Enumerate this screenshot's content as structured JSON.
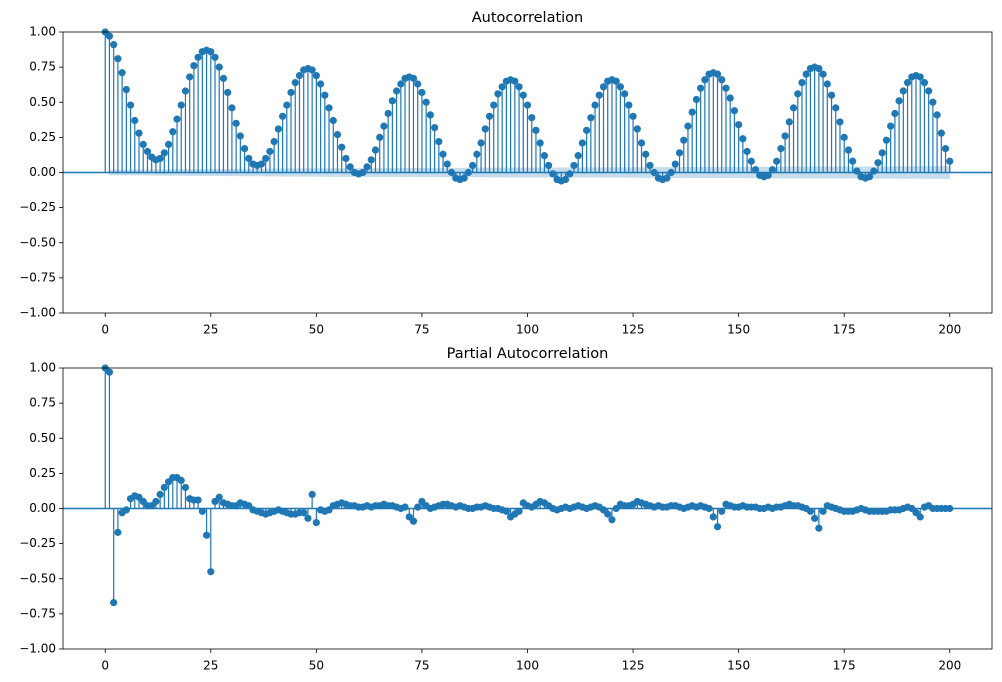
{
  "chart_data": [
    {
      "type": "stem",
      "title": "Autocorrelation",
      "color": "#1f77b4",
      "x": [
        0,
        1,
        2,
        3,
        4,
        5,
        6,
        7,
        8,
        9,
        10,
        11,
        12,
        13,
        14,
        15,
        16,
        17,
        18,
        19,
        20,
        21,
        22,
        23,
        24,
        25,
        26,
        27,
        28,
        29,
        30,
        31,
        32,
        33,
        34,
        35,
        36,
        37,
        38,
        39,
        40,
        41,
        42,
        43,
        44,
        45,
        46,
        47,
        48,
        49,
        50,
        51,
        52,
        53,
        54,
        55,
        56,
        57,
        58,
        59,
        60,
        61,
        62,
        63,
        64,
        65,
        66,
        67,
        68,
        69,
        70,
        71,
        72,
        73,
        74,
        75,
        76,
        77,
        78,
        79,
        80,
        81,
        82,
        83,
        84,
        85,
        86,
        87,
        88,
        89,
        90,
        91,
        92,
        93,
        94,
        95,
        96,
        97,
        98,
        99,
        100,
        101,
        102,
        103,
        104,
        105,
        106,
        107,
        108,
        109,
        110,
        111,
        112,
        113,
        114,
        115,
        116,
        117,
        118,
        119,
        120,
        121,
        122,
        123,
        124,
        125,
        126,
        127,
        128,
        129,
        130,
        131,
        132,
        133,
        134,
        135,
        136,
        137,
        138,
        139,
        140,
        141,
        142,
        143,
        144,
        145,
        146,
        147,
        148,
        149,
        150,
        151,
        152,
        153,
        154,
        155,
        156,
        157,
        158,
        159,
        160,
        161,
        162,
        163,
        164,
        165,
        166,
        167,
        168,
        169,
        170,
        171,
        172,
        173,
        174,
        175,
        176,
        177,
        178,
        179,
        180,
        181,
        182,
        183,
        184,
        185,
        186,
        187,
        188,
        189,
        190,
        191,
        192,
        193,
        194,
        195,
        196,
        197,
        198,
        199,
        200
      ],
      "values": [
        1.0,
        0.97,
        0.91,
        0.81,
        0.71,
        0.59,
        0.48,
        0.37,
        0.28,
        0.2,
        0.15,
        0.11,
        0.09,
        0.1,
        0.14,
        0.2,
        0.29,
        0.38,
        0.48,
        0.58,
        0.68,
        0.76,
        0.82,
        0.86,
        0.87,
        0.86,
        0.82,
        0.75,
        0.67,
        0.57,
        0.46,
        0.35,
        0.26,
        0.17,
        0.1,
        0.06,
        0.05,
        0.06,
        0.1,
        0.15,
        0.22,
        0.31,
        0.4,
        0.48,
        0.57,
        0.64,
        0.69,
        0.73,
        0.74,
        0.73,
        0.69,
        0.63,
        0.55,
        0.46,
        0.37,
        0.27,
        0.18,
        0.1,
        0.04,
        0.0,
        -0.01,
        0.0,
        0.04,
        0.09,
        0.16,
        0.25,
        0.33,
        0.42,
        0.51,
        0.58,
        0.63,
        0.67,
        0.68,
        0.67,
        0.63,
        0.57,
        0.5,
        0.41,
        0.32,
        0.22,
        0.13,
        0.06,
        0.0,
        -0.04,
        -0.05,
        -0.04,
        0.0,
        0.05,
        0.13,
        0.21,
        0.31,
        0.4,
        0.48,
        0.56,
        0.61,
        0.65,
        0.66,
        0.65,
        0.61,
        0.55,
        0.48,
        0.39,
        0.3,
        0.21,
        0.12,
        0.05,
        -0.01,
        -0.05,
        -0.06,
        -0.05,
        -0.01,
        0.05,
        0.12,
        0.21,
        0.3,
        0.39,
        0.48,
        0.55,
        0.61,
        0.65,
        0.66,
        0.65,
        0.61,
        0.56,
        0.48,
        0.4,
        0.31,
        0.21,
        0.13,
        0.05,
        0.0,
        -0.04,
        -0.05,
        -0.04,
        0.0,
        0.06,
        0.14,
        0.23,
        0.33,
        0.43,
        0.52,
        0.6,
        0.66,
        0.7,
        0.71,
        0.7,
        0.66,
        0.6,
        0.53,
        0.44,
        0.34,
        0.24,
        0.15,
        0.08,
        0.02,
        -0.02,
        -0.03,
        -0.02,
        0.02,
        0.08,
        0.17,
        0.26,
        0.36,
        0.46,
        0.56,
        0.64,
        0.7,
        0.74,
        0.75,
        0.74,
        0.7,
        0.63,
        0.55,
        0.46,
        0.36,
        0.25,
        0.16,
        0.08,
        0.01,
        -0.03,
        -0.04,
        -0.03,
        0.01,
        0.07,
        0.14,
        0.23,
        0.33,
        0.42,
        0.51,
        0.58,
        0.64,
        0.68,
        0.69,
        0.68,
        0.64,
        0.58,
        0.5,
        0.41,
        0.28,
        0.17,
        0.08
      ],
      "confint": {
        "x": [
          1,
          25,
          50,
          100,
          150,
          200
        ],
        "values": [
          0.02,
          0.025,
          0.03,
          0.035,
          0.04,
          0.045
        ]
      },
      "xlim": [
        -10,
        210
      ],
      "ylim": [
        -1,
        1
      ],
      "xticks": [
        0,
        25,
        50,
        75,
        100,
        125,
        150,
        175,
        200
      ],
      "yticks": [
        {
          "value": -1,
          "label": "−1.00"
        },
        {
          "value": -0.75,
          "label": "−0.75"
        },
        {
          "value": -0.5,
          "label": "−0.50"
        },
        {
          "value": -0.25,
          "label": "−0.25"
        },
        {
          "value": 0,
          "label": "0.00"
        },
        {
          "value": 0.25,
          "label": "0.25"
        },
        {
          "value": 0.5,
          "label": "0.50"
        },
        {
          "value": 0.75,
          "label": "0.75"
        },
        {
          "value": 1,
          "label": "1.00"
        }
      ]
    },
    {
      "type": "stem",
      "title": "Partial Autocorrelation",
      "color": "#1f77b4",
      "x": [
        0,
        1,
        2,
        3,
        4,
        5,
        6,
        7,
        8,
        9,
        10,
        11,
        12,
        13,
        14,
        15,
        16,
        17,
        18,
        19,
        20,
        21,
        22,
        23,
        24,
        25,
        26,
        27,
        28,
        29,
        30,
        31,
        32,
        33,
        34,
        35,
        36,
        37,
        38,
        39,
        40,
        41,
        42,
        43,
        44,
        45,
        46,
        47,
        48,
        49,
        50,
        51,
        52,
        53,
        54,
        55,
        56,
        57,
        58,
        59,
        60,
        61,
        62,
        63,
        64,
        65,
        66,
        67,
        68,
        69,
        70,
        71,
        72,
        73,
        74,
        75,
        76,
        77,
        78,
        79,
        80,
        81,
        82,
        83,
        84,
        85,
        86,
        87,
        88,
        89,
        90,
        91,
        92,
        93,
        94,
        95,
        96,
        97,
        98,
        99,
        100,
        101,
        102,
        103,
        104,
        105,
        106,
        107,
        108,
        109,
        110,
        111,
        112,
        113,
        114,
        115,
        116,
        117,
        118,
        119,
        120,
        121,
        122,
        123,
        124,
        125,
        126,
        127,
        128,
        129,
        130,
        131,
        132,
        133,
        134,
        135,
        136,
        137,
        138,
        139,
        140,
        141,
        142,
        143,
        144,
        145,
        146,
        147,
        148,
        149,
        150,
        151,
        152,
        153,
        154,
        155,
        156,
        157,
        158,
        159,
        160,
        161,
        162,
        163,
        164,
        165,
        166,
        167,
        168,
        169,
        170,
        171,
        172,
        173,
        174,
        175,
        176,
        177,
        178,
        179,
        180,
        181,
        182,
        183,
        184,
        185,
        186,
        187,
        188,
        189,
        190,
        191,
        192,
        193,
        194,
        195,
        196,
        197,
        198,
        199,
        200
      ],
      "values": [
        1.0,
        0.97,
        -0.67,
        -0.17,
        -0.03,
        -0.01,
        0.07,
        0.09,
        0.08,
        0.05,
        0.02,
        0.02,
        0.05,
        0.1,
        0.15,
        0.19,
        0.22,
        0.22,
        0.2,
        0.15,
        0.07,
        0.06,
        0.06,
        -0.02,
        -0.19,
        -0.45,
        0.05,
        0.08,
        0.04,
        0.03,
        0.02,
        0.02,
        0.04,
        0.03,
        0.02,
        -0.01,
        -0.02,
        -0.03,
        -0.04,
        -0.03,
        -0.02,
        -0.01,
        -0.02,
        -0.03,
        -0.04,
        -0.04,
        -0.03,
        -0.03,
        -0.07,
        0.1,
        -0.1,
        -0.01,
        -0.02,
        -0.01,
        0.02,
        0.03,
        0.04,
        0.03,
        0.02,
        0.02,
        0.01,
        0.01,
        0.02,
        0.01,
        0.02,
        0.02,
        0.03,
        0.02,
        0.02,
        0.01,
        0.0,
        0.01,
        -0.06,
        -0.09,
        0.01,
        0.05,
        0.02,
        0.0,
        0.01,
        0.02,
        0.03,
        0.03,
        0.02,
        0.01,
        0.02,
        0.01,
        0.0,
        0.0,
        0.01,
        0.01,
        0.02,
        0.01,
        0.0,
        0.0,
        -0.01,
        -0.02,
        -0.06,
        -0.04,
        -0.02,
        0.04,
        0.02,
        0.01,
        0.03,
        0.05,
        0.04,
        0.02,
        0.0,
        -0.01,
        0.0,
        0.01,
        0.0,
        0.01,
        0.02,
        0.01,
        0.0,
        0.01,
        0.02,
        0.01,
        -0.01,
        -0.04,
        -0.08,
        0.0,
        0.03,
        0.02,
        0.02,
        0.03,
        0.05,
        0.04,
        0.03,
        0.02,
        0.01,
        0.02,
        0.01,
        0.01,
        0.02,
        0.02,
        0.01,
        0.0,
        0.01,
        0.02,
        0.01,
        0.02,
        0.01,
        0.0,
        -0.06,
        -0.13,
        -0.02,
        0.03,
        0.02,
        0.01,
        0.01,
        0.02,
        0.01,
        0.01,
        0.01,
        0.0,
        0.0,
        0.01,
        0.0,
        0.01,
        0.01,
        0.02,
        0.03,
        0.02,
        0.02,
        0.01,
        0.0,
        -0.02,
        -0.07,
        -0.14,
        -0.02,
        0.02,
        0.01,
        0.0,
        -0.01,
        -0.02,
        -0.02,
        -0.02,
        -0.01,
        0.0,
        -0.01,
        -0.02,
        -0.02,
        -0.02,
        -0.02,
        -0.02,
        -0.01,
        -0.01,
        -0.01,
        0.0,
        0.01,
        0.0,
        -0.03,
        -0.06,
        0.01,
        0.02,
        0.0,
        0.0,
        0.0,
        0.0,
        0.0
      ],
      "xlim": [
        -10,
        210
      ],
      "ylim": [
        -1,
        1
      ],
      "xticks": [
        0,
        25,
        50,
        75,
        100,
        125,
        150,
        175,
        200
      ],
      "yticks": [
        {
          "value": -1,
          "label": "−1.00"
        },
        {
          "value": -0.75,
          "label": "−0.75"
        },
        {
          "value": -0.5,
          "label": "−0.50"
        },
        {
          "value": -0.25,
          "label": "−0.25"
        },
        {
          "value": 0,
          "label": "0.00"
        },
        {
          "value": 0.25,
          "label": "0.25"
        },
        {
          "value": 0.5,
          "label": "0.50"
        },
        {
          "value": 0.75,
          "label": "0.75"
        },
        {
          "value": 1,
          "label": "1.00"
        }
      ]
    }
  ]
}
